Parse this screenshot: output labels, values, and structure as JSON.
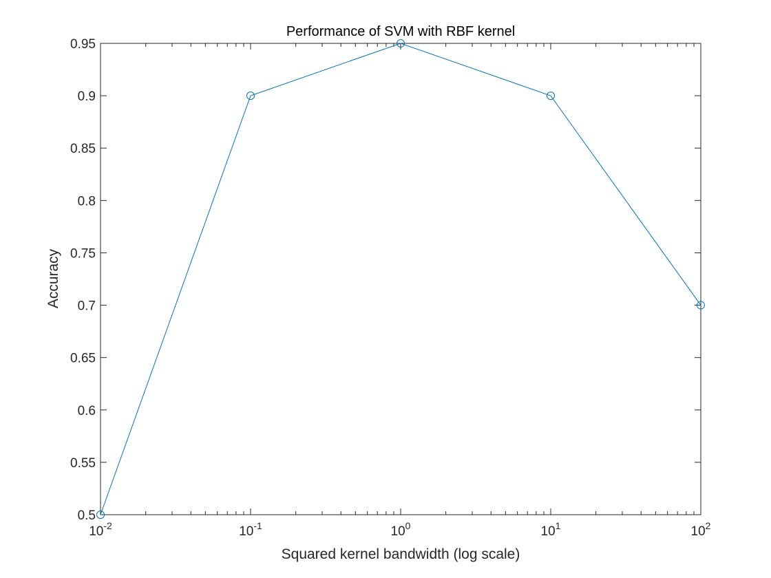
{
  "chart_data": {
    "type": "line",
    "title": "Performance of SVM with RBF kernel",
    "xlabel": "Squared kernel bandwidth (log scale)",
    "ylabel": "Accuracy",
    "xscale": "log",
    "xlim": [
      0.01,
      100
    ],
    "ylim": [
      0.5,
      0.95
    ],
    "grid": false,
    "legend": "none",
    "x": [
      0.01,
      0.1,
      1,
      10,
      100
    ],
    "series": [
      {
        "values": [
          0.5,
          0.9,
          0.95,
          0.9,
          0.7
        ],
        "color": "#0072BD",
        "marker": "circle"
      }
    ],
    "xticks": [
      {
        "value": 0.01,
        "base": "10",
        "exp": "-2"
      },
      {
        "value": 0.1,
        "base": "10",
        "exp": "-1"
      },
      {
        "value": 1,
        "base": "10",
        "exp": "0"
      },
      {
        "value": 10,
        "base": "10",
        "exp": "1"
      },
      {
        "value": 100,
        "base": "10",
        "exp": "2"
      }
    ],
    "yticks": [
      {
        "value": 0.5,
        "label": "0.5"
      },
      {
        "value": 0.55,
        "label": "0.55"
      },
      {
        "value": 0.6,
        "label": "0.6"
      },
      {
        "value": 0.65,
        "label": "0.65"
      },
      {
        "value": 0.7,
        "label": "0.7"
      },
      {
        "value": 0.75,
        "label": "0.75"
      },
      {
        "value": 0.8,
        "label": "0.8"
      },
      {
        "value": 0.85,
        "label": "0.85"
      },
      {
        "value": 0.9,
        "label": "0.9"
      },
      {
        "value": 0.95,
        "label": "0.95"
      }
    ]
  }
}
